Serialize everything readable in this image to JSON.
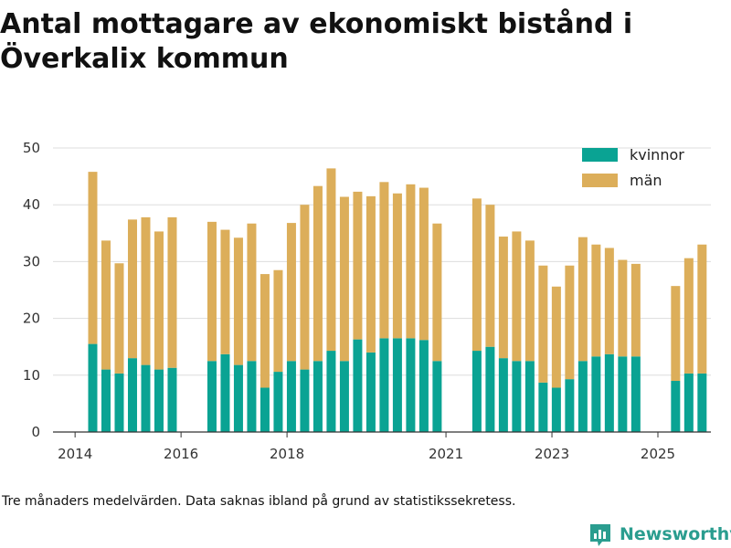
{
  "title": "Antal mottagare av ekonomiskt bistånd i Överkalix kommun",
  "caption": "Tre månaders medelvärden. Data saknas ibland på grund av statistikssekretess.",
  "brand": {
    "name": "Newsworthy",
    "color": "#2a9d8f"
  },
  "legend": {
    "position": "top-right"
  },
  "chart_data": {
    "type": "bar",
    "stacked": true,
    "ylim": [
      0,
      50
    ],
    "yticks": [
      0,
      10,
      20,
      30,
      40,
      50
    ],
    "xlim": [
      "2013-08",
      "2026-01"
    ],
    "xticks": [
      "2014",
      "2016",
      "2018",
      "2021",
      "2023",
      "2025"
    ],
    "grid": true,
    "x": [
      "2014-05",
      "2014-08",
      "2014-11",
      "2015-02",
      "2015-05",
      "2015-08",
      "2015-11",
      "2016-02",
      "2016-08",
      "2016-11",
      "2017-02",
      "2017-05",
      "2017-08",
      "2017-11",
      "2018-02",
      "2018-05",
      "2018-08",
      "2018-11",
      "2019-02",
      "2019-05",
      "2019-08",
      "2019-11",
      "2020-02",
      "2020-05",
      "2020-08",
      "2020-11",
      "2021-02",
      "2021-08",
      "2021-11",
      "2022-02",
      "2022-05",
      "2022-08",
      "2022-11",
      "2023-02",
      "2023-05",
      "2023-08",
      "2023-11",
      "2024-02",
      "2024-05",
      "2024-08",
      "2024-11",
      "2025-05",
      "2025-08",
      "2025-11"
    ],
    "series": [
      {
        "name": "kvinnor",
        "color": "#0aa393",
        "values": [
          15.5,
          11,
          10.3,
          13,
          11.8,
          11,
          11.3,
          0,
          12.5,
          13.7,
          11.8,
          12.5,
          7.8,
          10.6,
          12.5,
          11,
          12.5,
          14.3,
          12.5,
          16.3,
          14,
          16.5,
          16.5,
          16.5,
          16.2,
          12.5,
          0,
          14.3,
          15,
          13,
          12.5,
          12.5,
          8.7,
          7.8,
          9.3,
          12.5,
          13.3,
          13.7,
          13.3,
          13.3,
          0,
          9,
          10.3,
          10.3
        ]
      },
      {
        "name": "män",
        "color": "#dcae5a",
        "values": [
          30.3,
          22.7,
          19.4,
          24.4,
          26,
          24.3,
          26.5,
          0,
          24.5,
          21.9,
          22.4,
          24.2,
          20,
          17.9,
          24.3,
          29,
          30.8,
          32.1,
          28.9,
          26,
          27.5,
          27.5,
          25.5,
          27.1,
          26.8,
          24.2,
          0,
          26.8,
          25,
          21.4,
          22.8,
          21.2,
          20.6,
          17.8,
          20,
          21.8,
          19.7,
          18.7,
          17,
          16.3,
          0,
          16.7,
          20.3,
          22.7
        ]
      }
    ]
  }
}
